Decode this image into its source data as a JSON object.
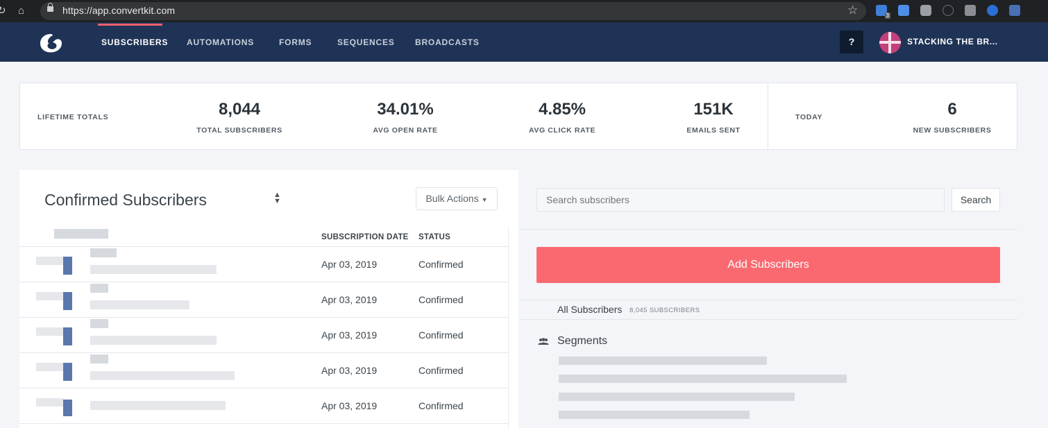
{
  "browser": {
    "url": "https://app.convertkit.com",
    "extension_badge_1": "3"
  },
  "header": {
    "nav": [
      {
        "label": "SUBSCRIBERS",
        "active": true
      },
      {
        "label": "AUTOMATIONS",
        "active": false
      },
      {
        "label": "FORMS",
        "active": false
      },
      {
        "label": "SEQUENCES",
        "active": false
      },
      {
        "label": "BROADCASTS",
        "active": false
      }
    ],
    "help_label": "?",
    "account_name": "STACKING THE BR..."
  },
  "stats": {
    "lifetime_label": "LIFETIME TOTALS",
    "items": [
      {
        "value": "8,044",
        "caption": "TOTAL SUBSCRIBERS"
      },
      {
        "value": "34.01%",
        "caption": "AVG OPEN RATE"
      },
      {
        "value": "4.85%",
        "caption": "AVG CLICK RATE"
      },
      {
        "value": "151K",
        "caption": "EMAILS SENT"
      }
    ],
    "today_label": "TODAY",
    "today": {
      "value": "6",
      "caption": "NEW SUBSCRIBERS"
    }
  },
  "subscribers": {
    "title": "Confirmed Subscribers",
    "bulk_actions_label": "Bulk Actions",
    "columns": {
      "date": "SUBSCRIPTION DATE",
      "status": "STATUS"
    },
    "rows": [
      {
        "date": "Apr 03, 2019",
        "status": "Confirmed"
      },
      {
        "date": "Apr 03, 2019",
        "status": "Confirmed"
      },
      {
        "date": "Apr 03, 2019",
        "status": "Confirmed"
      },
      {
        "date": "Apr 03, 2019",
        "status": "Confirmed"
      },
      {
        "date": "Apr 03, 2019",
        "status": "Confirmed"
      }
    ]
  },
  "sidebar": {
    "search_placeholder": "Search subscribers",
    "search_button": "Search",
    "add_button": "Add Subscribers",
    "all_subscribers_label": "All Subscribers",
    "all_subscribers_count": "8,045 SUBSCRIBERS",
    "segments_label": "Segments"
  },
  "colors": {
    "header_bg": "#1f3356",
    "accent": "#f7616b",
    "add_button": "#fb6970"
  }
}
